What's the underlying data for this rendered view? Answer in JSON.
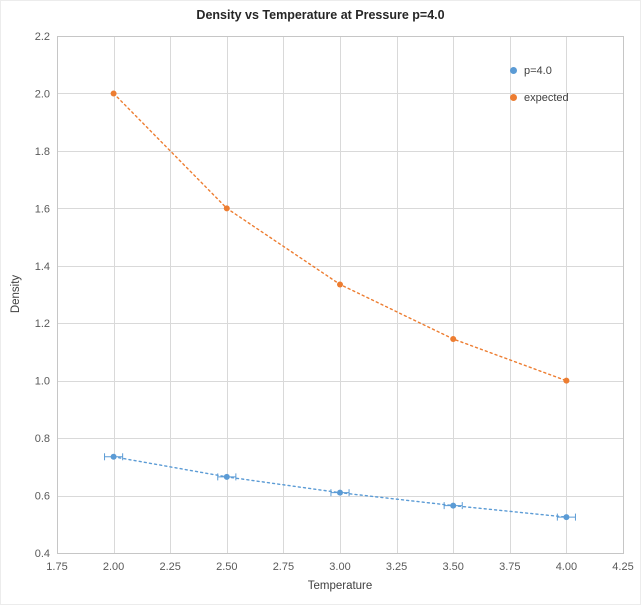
{
  "chart_data": {
    "type": "line",
    "title": "Density vs Temperature at Pressure p=4.0",
    "xlabel": "Temperature",
    "ylabel": "Density",
    "xlim": [
      1.75,
      4.25
    ],
    "ylim": [
      0.4,
      2.2
    ],
    "grid": true,
    "legend_position": "upper right",
    "x_ticks": [
      "1.75",
      "2.00",
      "2.25",
      "2.50",
      "2.75",
      "3.00",
      "3.25",
      "3.50",
      "3.75",
      "4.00",
      "4.25"
    ],
    "y_ticks": [
      "0.4",
      "0.6",
      "0.8",
      "1.0",
      "1.2",
      "1.4",
      "1.6",
      "1.8",
      "2.0",
      "2.2"
    ],
    "x": [
      2.0,
      2.5,
      3.0,
      3.5,
      4.0
    ],
    "series": [
      {
        "name": "p=4.0",
        "color": "#5b9bd5",
        "line_style": "dotted",
        "marker": "circle",
        "x_error": 0.04,
        "values": [
          0.735,
          0.665,
          0.61,
          0.565,
          0.525
        ]
      },
      {
        "name": "expected",
        "color": "#ed7d31",
        "line_style": "dotted",
        "marker": "circle",
        "values": [
          2.0,
          1.6,
          1.335,
          1.145,
          1.0
        ]
      }
    ]
  }
}
